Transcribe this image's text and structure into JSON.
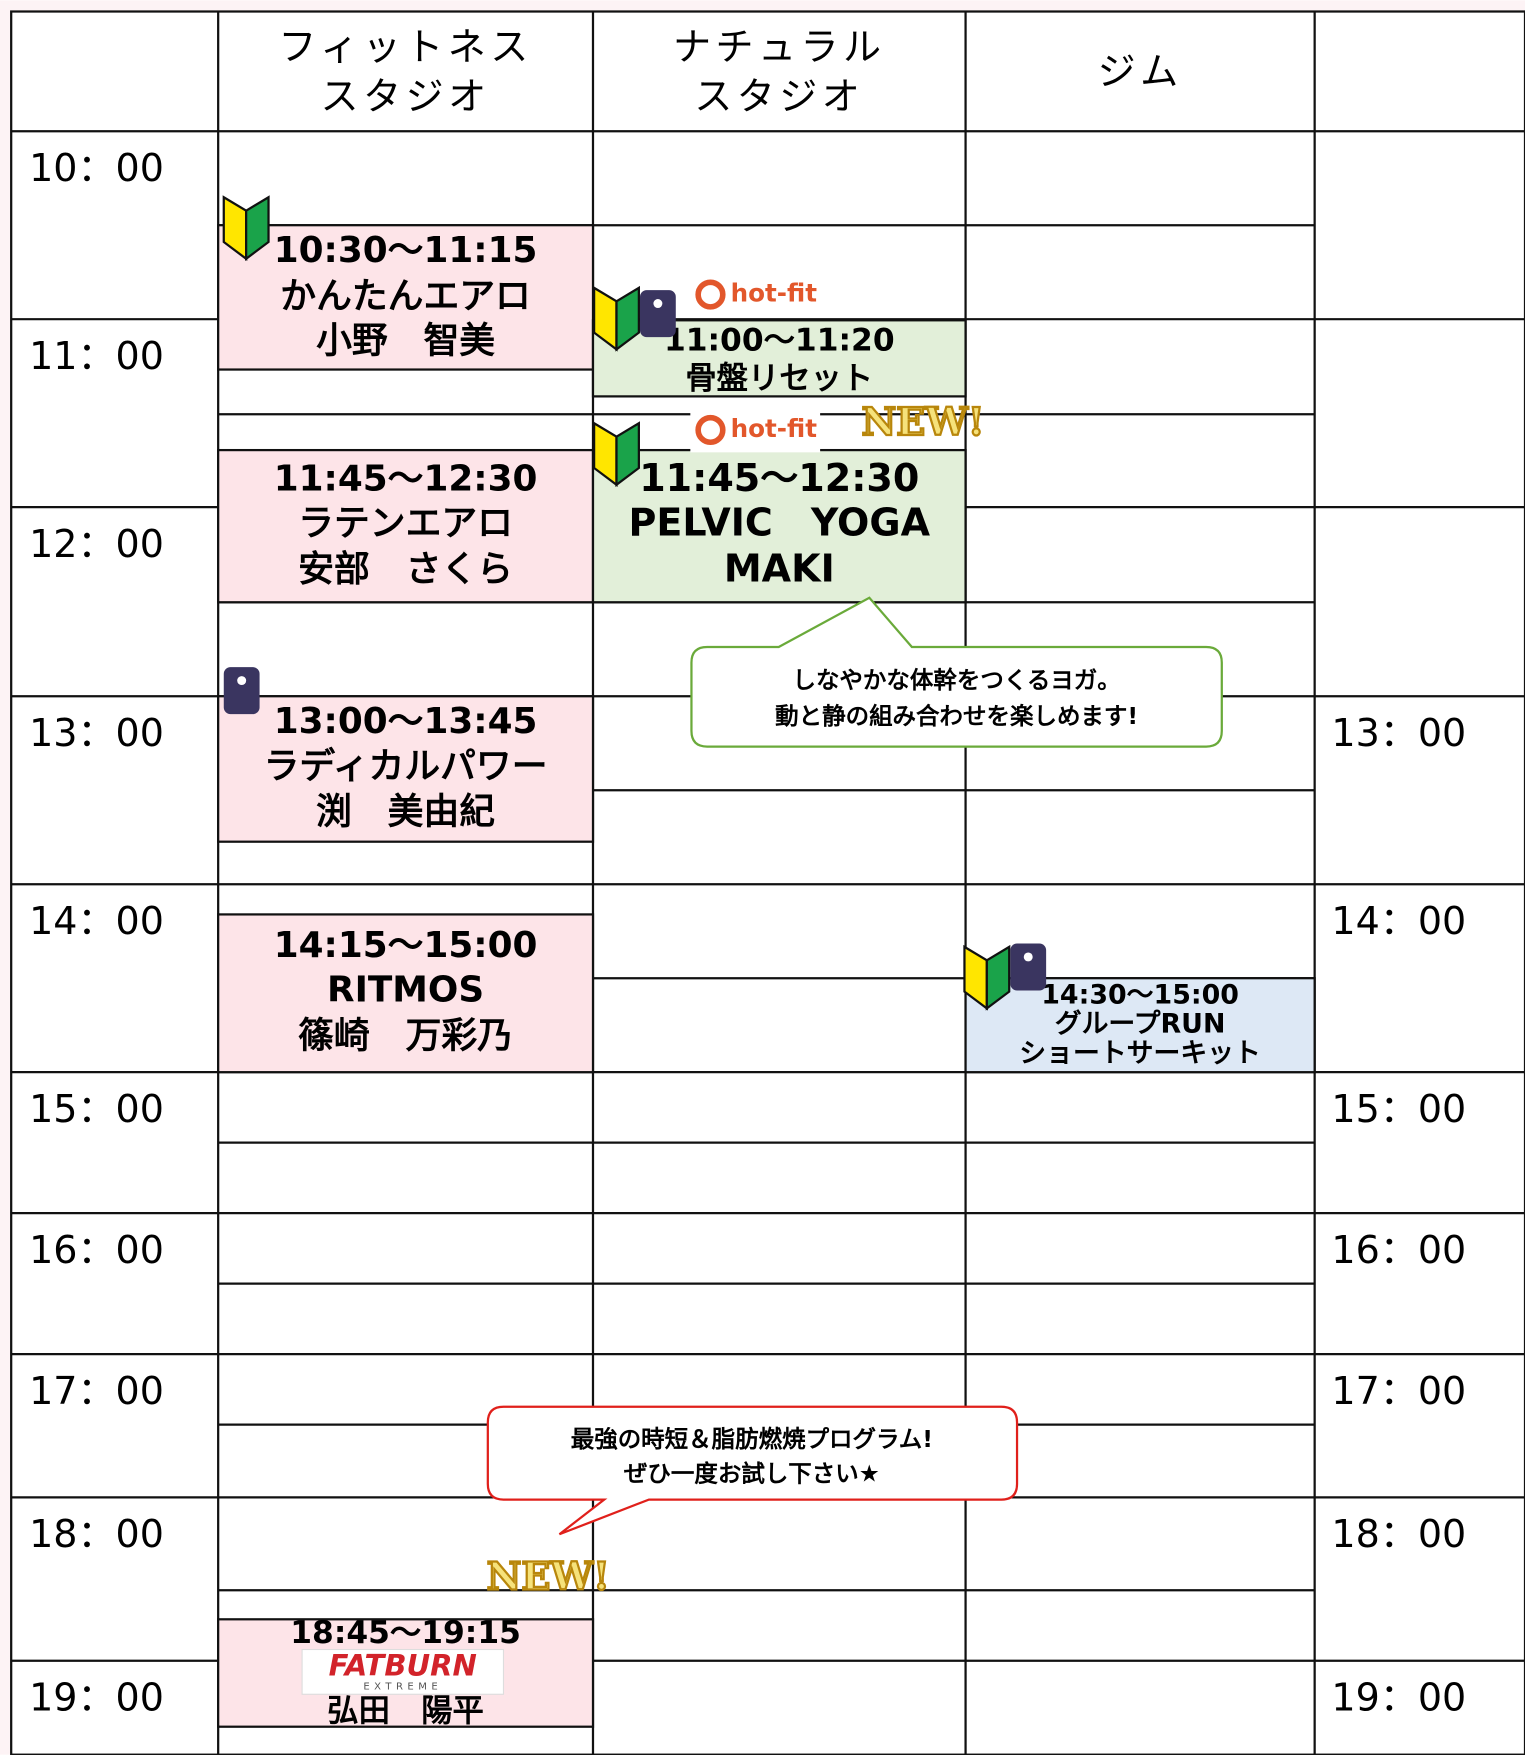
{
  "header": {
    "columns": [
      [
        "フィットネス",
        "スタジオ"
      ],
      [
        "ナチュラル",
        "スタジオ"
      ],
      [
        "ジム"
      ]
    ]
  },
  "times_left": [
    "10：00",
    "11：00",
    "12：00",
    "13：00",
    "14：00",
    "15：00",
    "16：00",
    "17：00",
    "18：00",
    "19：00"
  ],
  "times_right": [
    "13：00",
    "14：00",
    "15：00",
    "16：00",
    "17：00",
    "18：00",
    "19：00"
  ],
  "classes": [
    {
      "lines": [
        "10:30〜11:15",
        "かんたんエアロ",
        "小野　智美"
      ]
    },
    {
      "lines": [
        "11:45〜12:30",
        "ラテンエアロ",
        "安部　さくら"
      ]
    },
    {
      "lines": [
        "13:00〜13:45",
        "ラディカルパワー",
        "渕　美由紀"
      ]
    },
    {
      "lines": [
        "14:15〜15:00",
        "RITMOS",
        "篠崎　万彩乃"
      ]
    },
    {
      "lines": [
        "18:45〜19:15",
        "弘田　陽平"
      ],
      "logo": [
        "FATBURN",
        "EXTREME"
      ],
      "tag": "NEW!"
    },
    {
      "lines": [
        "11:00〜11:20",
        "骨盤リセット"
      ],
      "brand": "hot-fit"
    },
    {
      "lines": [
        "11:45〜12:30",
        "PELVIC　YOGA",
        "MAKI"
      ],
      "brand": "hot-fit",
      "tag": "NEW!"
    },
    {
      "lines": [
        "14:30〜15:00",
        "グループRUN",
        "ショートサーキット"
      ]
    }
  ],
  "callouts": [
    [
      "しなやかな体幹をつくるヨガ。",
      "動と静の組み合わせを楽しめます!"
    ],
    [
      "最強の時短＆脂肪燃焼プログラム!",
      "ぜひ一度お試し下さい★"
    ]
  ]
}
